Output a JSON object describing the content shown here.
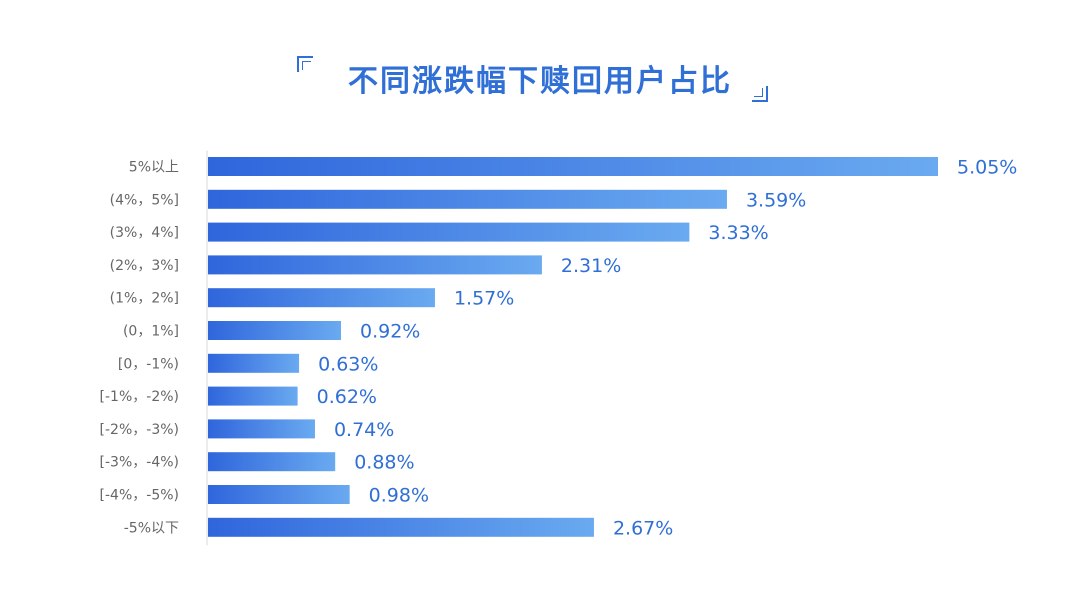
{
  "title": "不同涨跌幅下赎回用户占比",
  "colors": {
    "title": "#2f6fd6",
    "bar_start": "#2f66dc",
    "bar_end": "#6aaaf0",
    "value_label": "#2f6fd6",
    "category_label": "#666666",
    "axis": "#d9d9d9"
  },
  "chart_data": {
    "type": "bar",
    "orientation": "horizontal",
    "title": "不同涨跌幅下赎回用户占比",
    "xlabel": "",
    "ylabel": "",
    "unit": "%",
    "categories": [
      "5%以上",
      "(4%，5%]",
      "(3%，4%]",
      "(2%，3%]",
      "(1%，2%]",
      "(0，1%]",
      "[0，-1%)",
      "[-1%，-2%)",
      "[-2%，-3%)",
      "[-3%，-4%)",
      "[-4%，-5%)",
      "-5%以下"
    ],
    "values": [
      5.05,
      3.59,
      3.33,
      2.31,
      1.57,
      0.92,
      0.63,
      0.62,
      0.74,
      0.88,
      0.98,
      2.67
    ],
    "value_labels": [
      "5.05%",
      "3.59%",
      "3.33%",
      "2.31%",
      "1.57%",
      "0.92%",
      "0.63%",
      "0.62%",
      "0.74%",
      "0.88%",
      "0.98%",
      "2.67%"
    ],
    "xlim": [
      0,
      5.05
    ],
    "grid": false,
    "legend": "none"
  }
}
